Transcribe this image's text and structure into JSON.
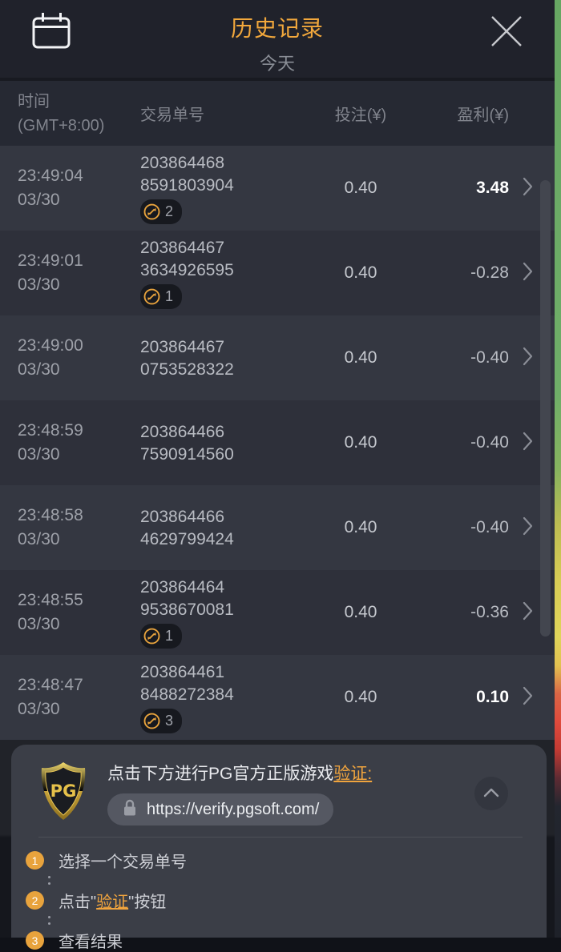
{
  "header": {
    "title": "历史记录",
    "subtitle": "今天"
  },
  "table_header": {
    "time_line1": "时间",
    "time_line2": "(GMT+8:00)",
    "transaction": "交易单号",
    "bet": "投注(¥)",
    "profit": "盈利(¥)"
  },
  "rows": [
    {
      "time": "23:49:04",
      "date": "03/30",
      "txn_line1": "203864468",
      "txn_line2": "8591803904",
      "badge_count": "2",
      "bet": "0.40",
      "profit": "3.48",
      "profit_positive": true
    },
    {
      "time": "23:49:01",
      "date": "03/30",
      "txn_line1": "203864467",
      "txn_line2": "3634926595",
      "badge_count": "1",
      "bet": "0.40",
      "profit": "-0.28",
      "profit_positive": false
    },
    {
      "time": "23:49:00",
      "date": "03/30",
      "txn_line1": "203864467",
      "txn_line2": "0753528322",
      "badge_count": null,
      "bet": "0.40",
      "profit": "-0.40",
      "profit_positive": false
    },
    {
      "time": "23:48:59",
      "date": "03/30",
      "txn_line1": "203864466",
      "txn_line2": "7590914560",
      "badge_count": null,
      "bet": "0.40",
      "profit": "-0.40",
      "profit_positive": false
    },
    {
      "time": "23:48:58",
      "date": "03/30",
      "txn_line1": "203864466",
      "txn_line2": "4629799424",
      "badge_count": null,
      "bet": "0.40",
      "profit": "-0.40",
      "profit_positive": false
    },
    {
      "time": "23:48:55",
      "date": "03/30",
      "txn_line1": "203864464",
      "txn_line2": "9538670081",
      "badge_count": "1",
      "bet": "0.40",
      "profit": "-0.36",
      "profit_positive": false
    },
    {
      "time": "23:48:47",
      "date": "03/30",
      "txn_line1": "203864461",
      "txn_line2": "8488272384",
      "badge_count": "3",
      "bet": "0.40",
      "profit": "0.10",
      "profit_positive": true
    }
  ],
  "verify_panel": {
    "logo": "PG",
    "instruction_text": "点击下方进行PG官方正版游戏",
    "instruction_link": "验证:",
    "url": "https://verify.pgsoft.com/",
    "steps": [
      {
        "num": "1",
        "pre": "选择一个交易单号",
        "em": "",
        "post": ""
      },
      {
        "num": "2",
        "pre": "点击\"",
        "em": "验证",
        "post": "\"按钮"
      },
      {
        "num": "3",
        "pre": "查看结果",
        "em": "",
        "post": ""
      }
    ]
  },
  "colors": {
    "accent": "#f0a43e",
    "positive": "#ffffff",
    "shield_gold": "#d8b84a",
    "title": "#f2a83c"
  }
}
